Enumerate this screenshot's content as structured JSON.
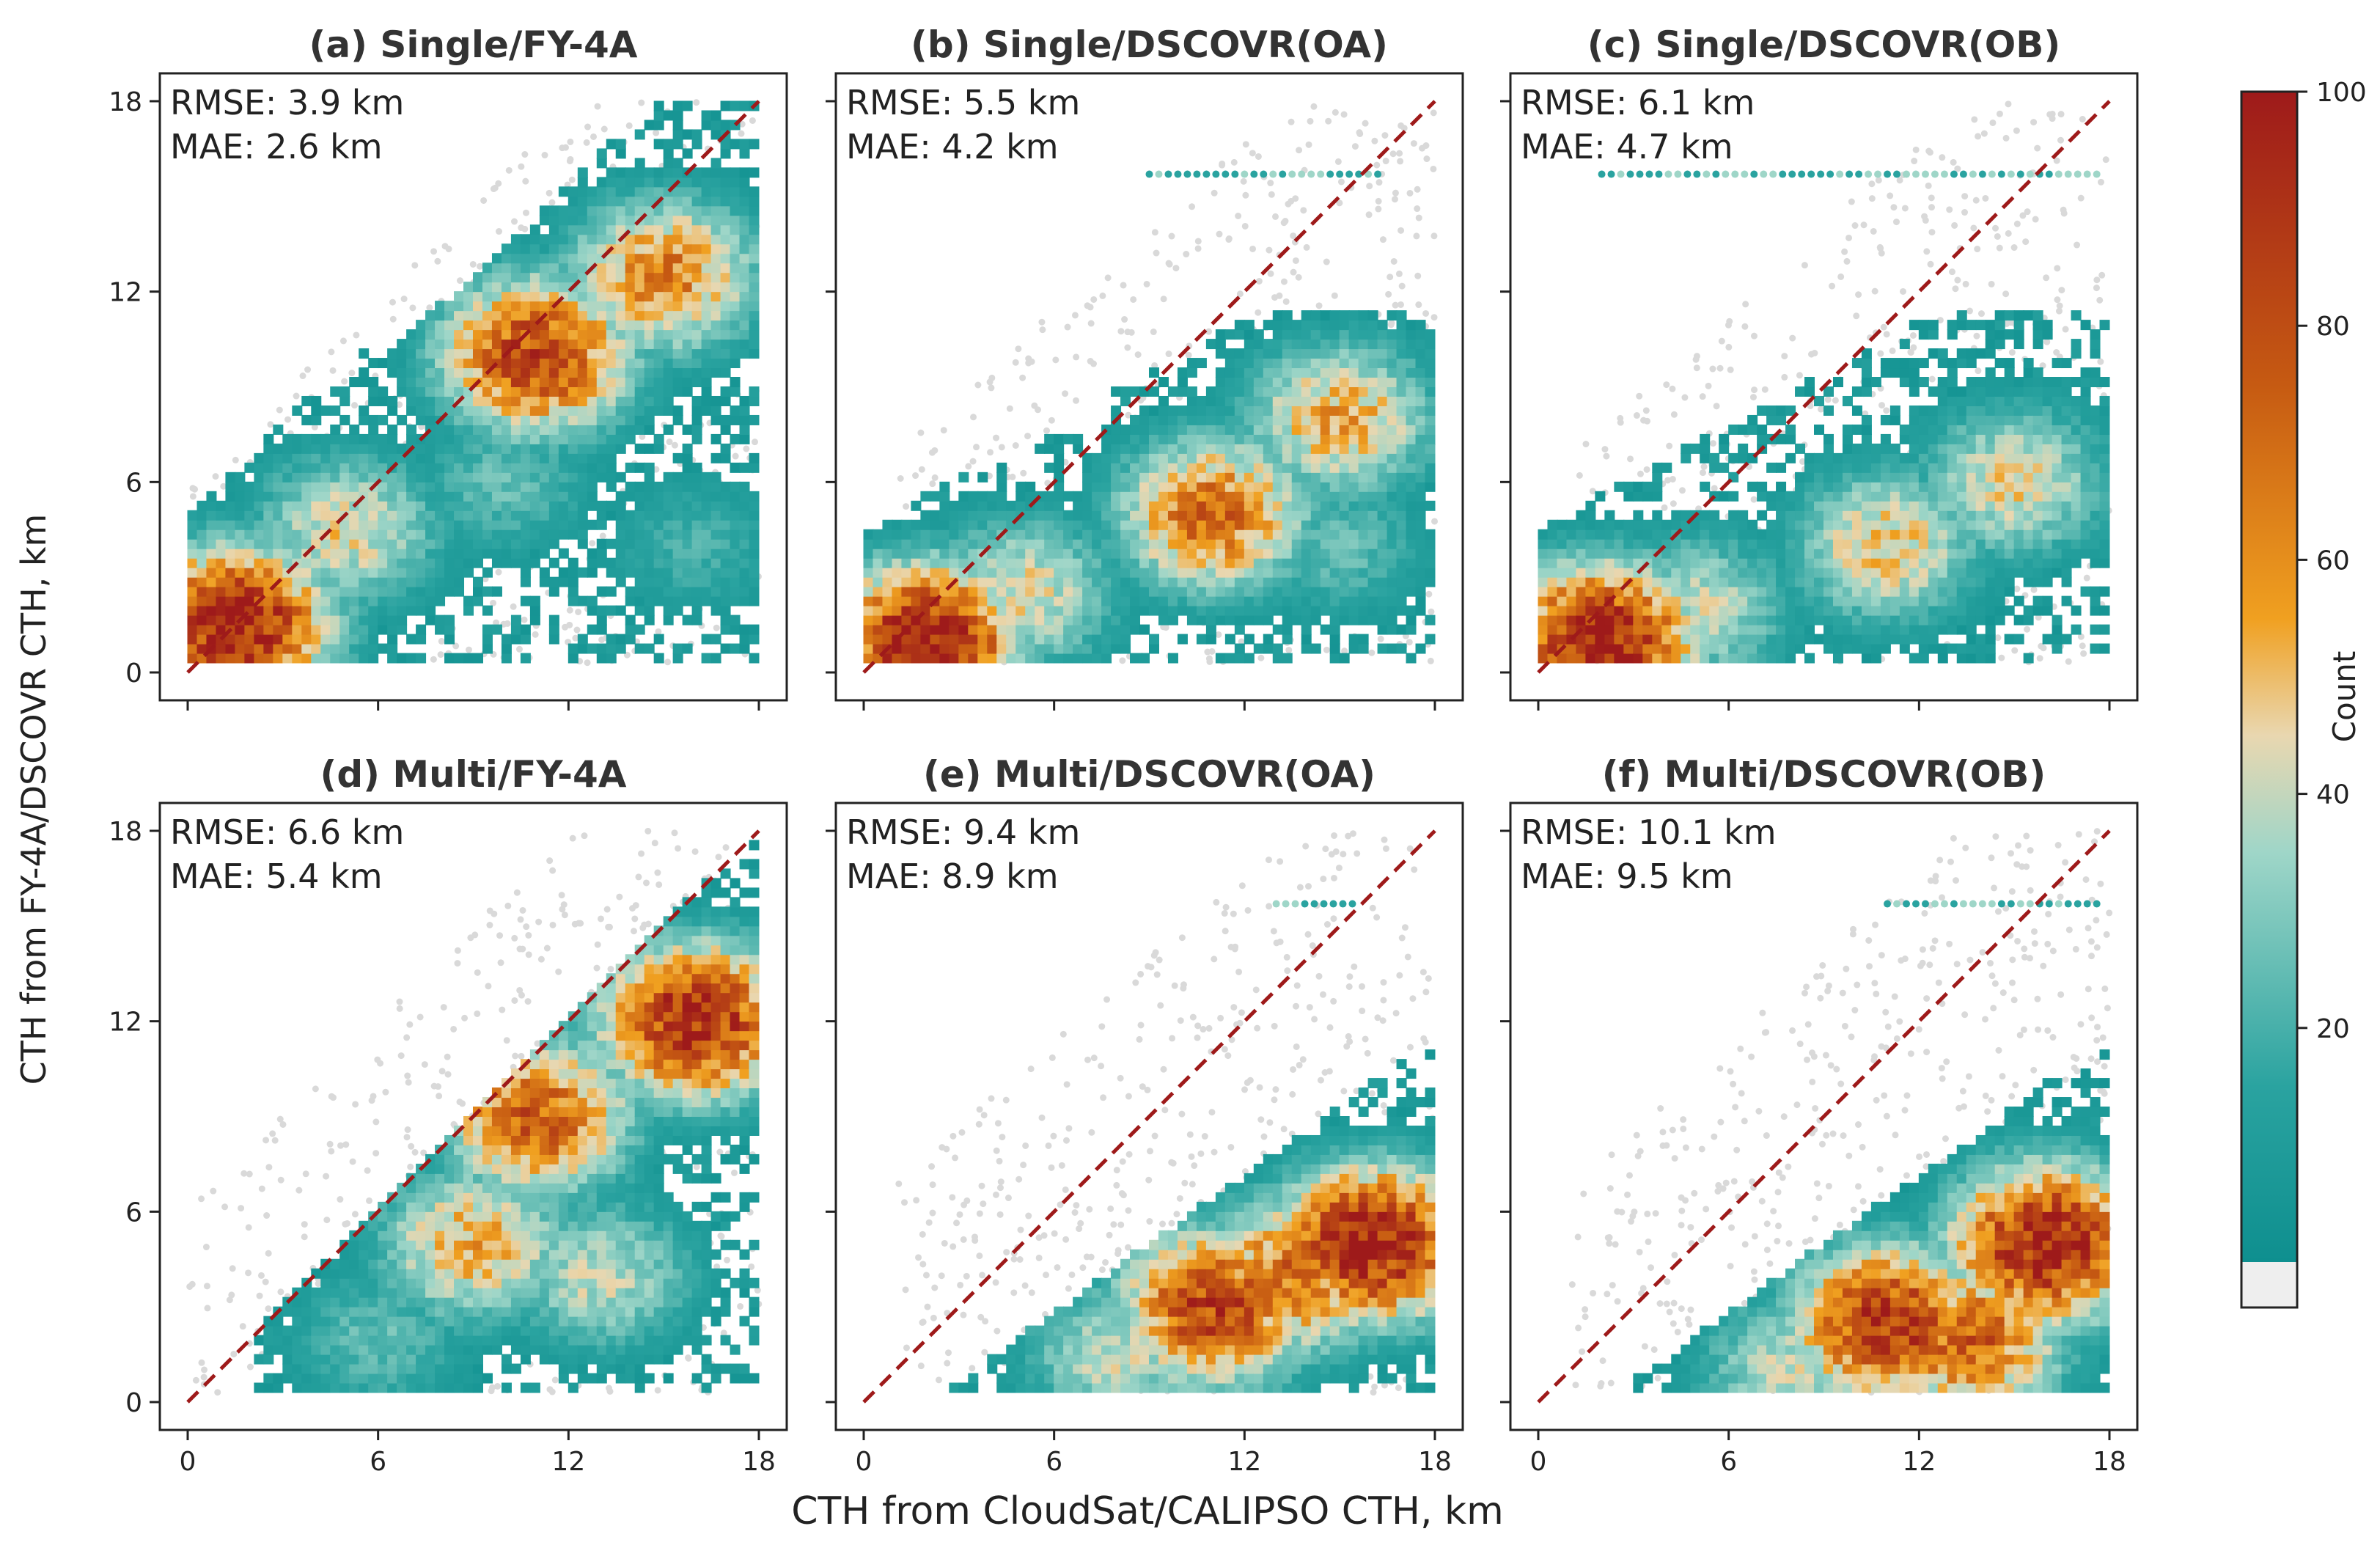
{
  "figure": {
    "ylabel": "CTH from FY-4A/DSCOVR CTH, km",
    "xlabel": "CTH from CloudSat/CALIPSO CTH, km",
    "colorbar": {
      "label": "Count",
      "range": [
        0,
        100
      ],
      "ticks": [
        "20",
        "40",
        "60",
        "80",
        "100"
      ],
      "tick_values": [
        20,
        40,
        60,
        80,
        100
      ],
      "under_color": "#eeeeee",
      "colors": [
        "#0e8f8f",
        "#6cc4b8",
        "#e9d7b0",
        "#f0a020",
        "#c65a12",
        "#9e1a1a"
      ]
    },
    "reference_line_color": "#9e1a1a"
  },
  "chart_data": [
    {
      "type": "scatter",
      "title": "(a) Single/FY-4A",
      "stats": [
        "RMSE: 3.9 km",
        "MAE: 2.6 km"
      ],
      "xlim": [
        0,
        18
      ],
      "ylim": [
        0,
        18
      ],
      "xticks": [
        "0",
        "6",
        "12",
        "18"
      ],
      "yticks": [
        "0",
        "6",
        "12",
        "18"
      ],
      "density_centers": [
        [
          1.5,
          1.5,
          100
        ],
        [
          5,
          4.5,
          45
        ],
        [
          11,
          10,
          85
        ],
        [
          15,
          12.5,
          65
        ],
        [
          10,
          6,
          25
        ],
        [
          16,
          4,
          20
        ]
      ]
    },
    {
      "type": "scatter",
      "title": "(b) Single/DSCOVR(OA)",
      "stats": [
        "RMSE: 5.5 km",
        "MAE: 4.2 km"
      ],
      "xlim": [
        0,
        18
      ],
      "ylim": [
        0,
        18
      ],
      "xticks": [
        "0",
        "6",
        "12",
        "18"
      ],
      "yticks": [
        "0",
        "6",
        "12",
        "18"
      ],
      "density_centers": [
        [
          2,
          1,
          100
        ],
        [
          5,
          2.5,
          45
        ],
        [
          11,
          5,
          70
        ],
        [
          15,
          8,
          55
        ],
        [
          15,
          4,
          25
        ]
      ]
    },
    {
      "type": "scatter",
      "title": "(c) Single/DSCOVR(OB)",
      "stats": [
        "RMSE: 6.1 km",
        "MAE: 4.7 km"
      ],
      "xlim": [
        0,
        18
      ],
      "ylim": [
        0,
        18
      ],
      "xticks": [
        "0",
        "6",
        "12",
        "18"
      ],
      "yticks": [
        "0",
        "6",
        "12",
        "18"
      ],
      "density_centers": [
        [
          2,
          1,
          100
        ],
        [
          5,
          2,
          40
        ],
        [
          11,
          4,
          50
        ],
        [
          15,
          6,
          45
        ],
        [
          15,
          15.5,
          20
        ]
      ]
    },
    {
      "type": "scatter",
      "title": "(d) Multi/FY-4A",
      "stats": [
        "RMSE: 6.6 km",
        "MAE: 5.4 km"
      ],
      "xlim": [
        0,
        18
      ],
      "ylim": [
        0,
        18
      ],
      "xticks": [
        "0",
        "6",
        "12",
        "18"
      ],
      "yticks": [
        "0",
        "6",
        "12",
        "18"
      ],
      "density_centers": [
        [
          16,
          12,
          95
        ],
        [
          11,
          9,
          75
        ],
        [
          9,
          5,
          55
        ],
        [
          13,
          4,
          40
        ],
        [
          6,
          2,
          25
        ]
      ]
    },
    {
      "type": "scatter",
      "title": "(e) Multi/DSCOVR(OA)",
      "stats": [
        "RMSE: 9.4 km",
        "MAE: 8.9 km"
      ],
      "xlim": [
        0,
        18
      ],
      "ylim": [
        0,
        18
      ],
      "xticks": [
        "0",
        "6",
        "12",
        "18"
      ],
      "yticks": [
        "0",
        "6",
        "12",
        "18"
      ],
      "density_centers": [
        [
          16,
          5,
          100
        ],
        [
          11,
          3,
          85
        ],
        [
          13.5,
          4,
          70
        ],
        [
          8,
          1.5,
          40
        ],
        [
          14,
          15.5,
          20
        ]
      ]
    },
    {
      "type": "scatter",
      "title": "(f) Multi/DSCOVR(OB)",
      "stats": [
        "RMSE: 10.1 km",
        "MAE: 9.5 km"
      ],
      "xlim": [
        0,
        18
      ],
      "ylim": [
        0,
        18
      ],
      "xticks": [
        "0",
        "6",
        "12",
        "18"
      ],
      "yticks": [
        "0",
        "6",
        "12",
        "18"
      ],
      "density_centers": [
        [
          16,
          5,
          100
        ],
        [
          11,
          2.5,
          90
        ],
        [
          13.5,
          2,
          75
        ],
        [
          8,
          1,
          40
        ],
        [
          15,
          15.5,
          25
        ]
      ]
    }
  ]
}
